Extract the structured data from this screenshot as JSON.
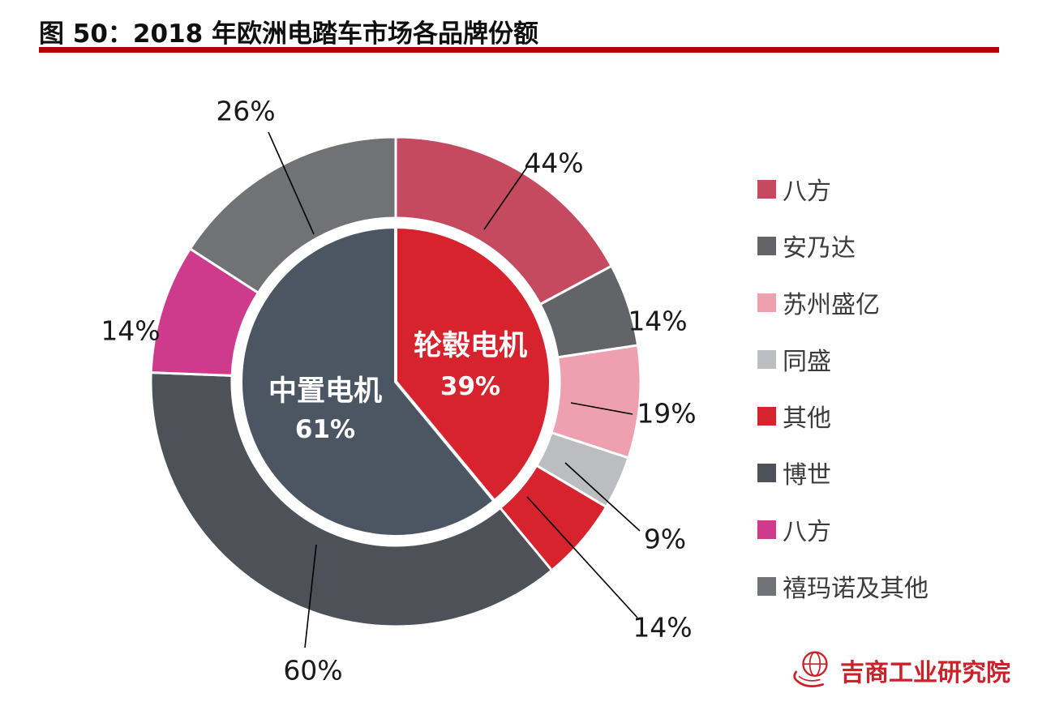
{
  "page": {
    "title": "图 50：2018 年欧洲电踏车市场各品牌份额",
    "accent_color": "#b40000",
    "background": "#ffffff",
    "logo_text": "吉商工业研究院",
    "logo_color": "#cb2128"
  },
  "chart_data": {
    "type": "pie",
    "subtype": "two-level-donut",
    "title": "图 50：2018 年欧洲电踏车市场各品牌份额",
    "legend_position": "right",
    "inner_series": [
      {
        "label": "轮毂电机",
        "value": 39,
        "pct": "39%",
        "color": "#d7232e"
      },
      {
        "label": "中置电机",
        "value": 61,
        "pct": "61%",
        "color": "#4c5663"
      }
    ],
    "outer_series": [
      {
        "label": "八方",
        "parent": "轮毂电机",
        "share_of_parent": 44,
        "pct": "44%",
        "color": "#c54a5f"
      },
      {
        "label": "安乃达",
        "parent": "轮毂电机",
        "share_of_parent": 14,
        "pct": "14%",
        "color": "#636468"
      },
      {
        "label": "苏州盛亿",
        "parent": "轮毂电机",
        "share_of_parent": 19,
        "pct": "19%",
        "color": "#efa0b0"
      },
      {
        "label": "同盛",
        "parent": "轮毂电机",
        "share_of_parent": 9,
        "pct": "9%",
        "color": "#bcbdc0"
      },
      {
        "label": "其他",
        "parent": "轮毂电机",
        "share_of_parent": 14,
        "pct": "14%",
        "color": "#d7232e"
      },
      {
        "label": "博世",
        "parent": "中置电机",
        "share_of_parent": 60,
        "pct": "60%",
        "color": "#4e5258"
      },
      {
        "label": "八方",
        "parent": "中置电机",
        "share_of_parent": 14,
        "pct": "14%",
        "color": "#ce3a8c"
      },
      {
        "label": "禧玛诺及其他",
        "parent": "中置电机",
        "share_of_parent": 26,
        "pct": "26%",
        "color": "#717276"
      }
    ],
    "legend": [
      {
        "label": "八方",
        "color": "#c54a5f"
      },
      {
        "label": "安乃达",
        "color": "#636468"
      },
      {
        "label": "苏州盛亿",
        "color": "#efa0b0"
      },
      {
        "label": "同盛",
        "color": "#bcbdc0"
      },
      {
        "label": "其他",
        "color": "#d7232e"
      },
      {
        "label": "博世",
        "color": "#4e5258"
      },
      {
        "label": "八方",
        "color": "#ce3a8c"
      },
      {
        "label": "禧玛诺及其他",
        "color": "#717276"
      }
    ]
  }
}
